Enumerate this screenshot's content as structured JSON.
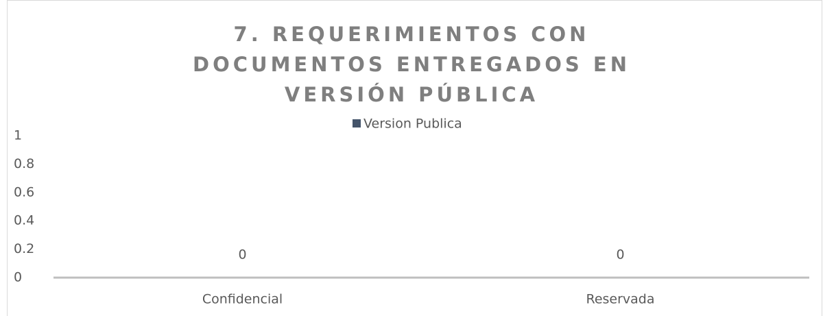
{
  "chart_data": {
    "type": "bar",
    "title": "7. REQUERIMIENTOS CON DOCUMENTOS ENTREGADOS EN VERSIÓN PÚBLICA",
    "categories": [
      "Confidencial",
      "Reservada"
    ],
    "series": [
      {
        "name": "Version Publica",
        "color": "#44546a",
        "values": [
          0,
          0
        ]
      }
    ],
    "ylim": [
      0,
      1
    ],
    "yticks": [
      0,
      0.2,
      0.4,
      0.6,
      0.8,
      1
    ],
    "grid": false,
    "legend": "top"
  }
}
